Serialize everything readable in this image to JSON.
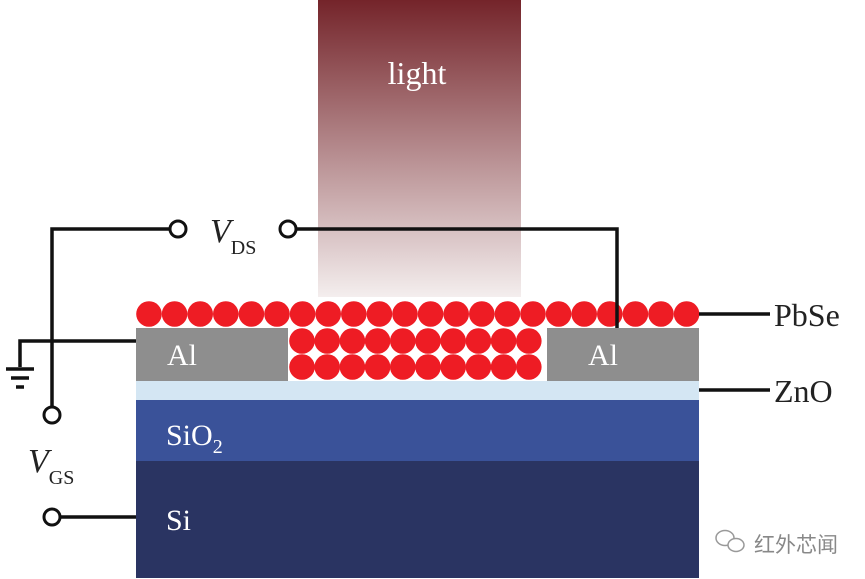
{
  "labels": {
    "light": "light",
    "vds_main": "V",
    "vds_sub": "DS",
    "vgs_main": "V",
    "vgs_sub": "GS",
    "pbse": "PbSe",
    "zno": "ZnO",
    "al_left": "Al",
    "al_right": "Al",
    "sio2_main": "SiO",
    "sio2_sub": "2",
    "si": "Si"
  },
  "watermark": {
    "text": "红外芯闻",
    "icon": "wechat-icon"
  },
  "colors": {
    "light_top": "#74242a",
    "light_bottom": "#f4eeee",
    "pbse": "#ee1c24",
    "al": "#8e8e8e",
    "zno": "#d4e6f3",
    "sio2": "#3a5299",
    "si": "#2a3462",
    "wire": "#111111"
  }
}
